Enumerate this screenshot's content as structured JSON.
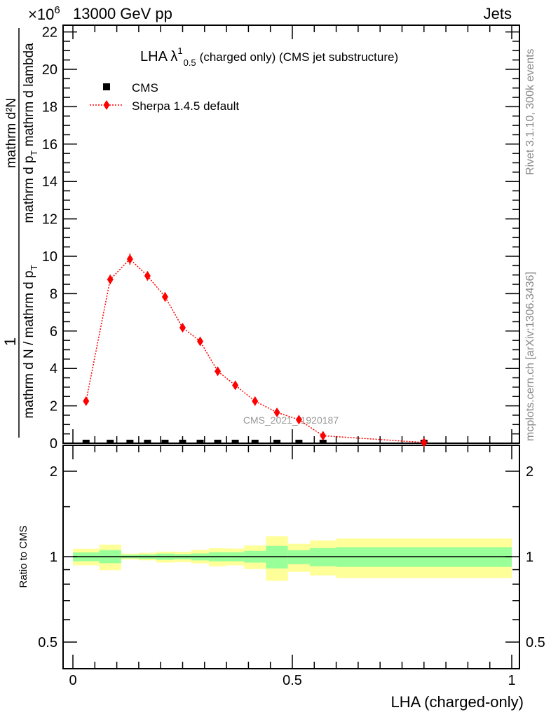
{
  "header": {
    "left": "13000 GeV pp",
    "right": "Jets",
    "exponent_base": "×10",
    "exponent_power": "6"
  },
  "side_labels": {
    "rivet": "Rivet 3.1.10,  300k events",
    "mcplots": "mcplots.cern.ch [arXiv:1306.3436]"
  },
  "watermark": "CMS_2021_I1920187",
  "colors": {
    "sherpa": "#ff0000",
    "cms": "#000000",
    "band_inner": "#99ff99",
    "band_outer": "#ffff99"
  },
  "chart_data": [
    {
      "type": "scatter",
      "title": "LHA λ",
      "title_sup": "1",
      "title_sub": "0.5",
      "title_rest": "(charged only) (CMS jet substructure)",
      "ylabel": {
        "frac1_num": "1",
        "frac1_den": "mathrm d N / mathrm d p",
        "frac1_den_sub": "T",
        "frac2_num": "mathrm d²N",
        "frac2_den": "mathrm d p",
        "frac2_den_sub": "T",
        "frac2_den_rest": " mathrm d lambda"
      },
      "ylim": [
        0,
        22.36
      ],
      "xlim": [
        -0.022,
        1.018
      ],
      "y_ticks": [
        0,
        2,
        4,
        6,
        8,
        10,
        12,
        14,
        16,
        18,
        20,
        22
      ],
      "y_tick_labels": [
        "0",
        "2",
        "4",
        "6",
        "8",
        "10",
        "12",
        "14",
        "16",
        "18",
        "20",
        "22"
      ],
      "legend": [
        {
          "name": "CMS",
          "marker": "square"
        },
        {
          "name": "Sherpa 1.4.5 default",
          "marker": "diamond"
        }
      ],
      "legend_position": "top-left",
      "bin_edges": [
        0,
        0.06,
        0.11,
        0.15,
        0.19,
        0.23,
        0.27,
        0.31,
        0.35,
        0.39,
        0.44,
        0.49,
        0.54,
        0.6,
        1.0
      ],
      "x": [
        0.03,
        0.085,
        0.13,
        0.17,
        0.21,
        0.25,
        0.29,
        0.33,
        0.37,
        0.415,
        0.465,
        0.515,
        0.57,
        0.8
      ],
      "series": [
        {
          "name": "CMS",
          "values": [
            0,
            0,
            0,
            0,
            0,
            0,
            0,
            0,
            0,
            0,
            0,
            0,
            0,
            0
          ]
        },
        {
          "name": "Sherpa 1.4.5 default",
          "values": [
            2.25,
            8.76,
            9.85,
            8.95,
            7.83,
            6.18,
            5.45,
            3.85,
            3.1,
            2.25,
            1.65,
            1.26,
            0.4,
            0.04
          ],
          "errors": [
            0.15,
            0.25,
            0.3,
            0.25,
            0.25,
            0.2,
            0.2,
            0.15,
            0.15,
            0.1,
            0.1,
            0.1,
            0.1,
            0.02
          ]
        }
      ]
    },
    {
      "type": "area",
      "ylabel": "Ratio to CMS",
      "xlabel": "LHA (charged-only)",
      "yscale": "log",
      "ylim": [
        0.403,
        2.466
      ],
      "y_ticks": [
        0.5,
        1,
        2
      ],
      "y_tick_labels": [
        "0.5",
        "1",
        "2"
      ],
      "x_ticks": [
        0,
        0.5,
        1
      ],
      "x_tick_labels": [
        "0",
        "0.5",
        "1"
      ],
      "inner_band": {
        "upper": [
          1.035,
          1.054,
          1.015,
          1.019,
          1.025,
          1.021,
          1.026,
          1.037,
          1.037,
          1.048,
          1.091,
          1.054,
          1.072,
          1.08
        ],
        "lower": [
          0.964,
          0.948,
          0.986,
          0.981,
          0.974,
          0.979,
          0.97,
          0.963,
          0.963,
          0.953,
          0.909,
          0.941,
          0.925,
          0.92
        ]
      },
      "outer_band": {
        "upper": [
          1.066,
          1.103,
          1.025,
          1.031,
          1.042,
          1.041,
          1.056,
          1.071,
          1.068,
          1.095,
          1.179,
          1.11,
          1.141,
          1.159
        ],
        "lower": [
          0.932,
          0.896,
          0.978,
          0.97,
          0.953,
          0.957,
          0.946,
          0.925,
          0.932,
          0.904,
          0.822,
          0.884,
          0.859,
          0.841
        ]
      }
    }
  ]
}
